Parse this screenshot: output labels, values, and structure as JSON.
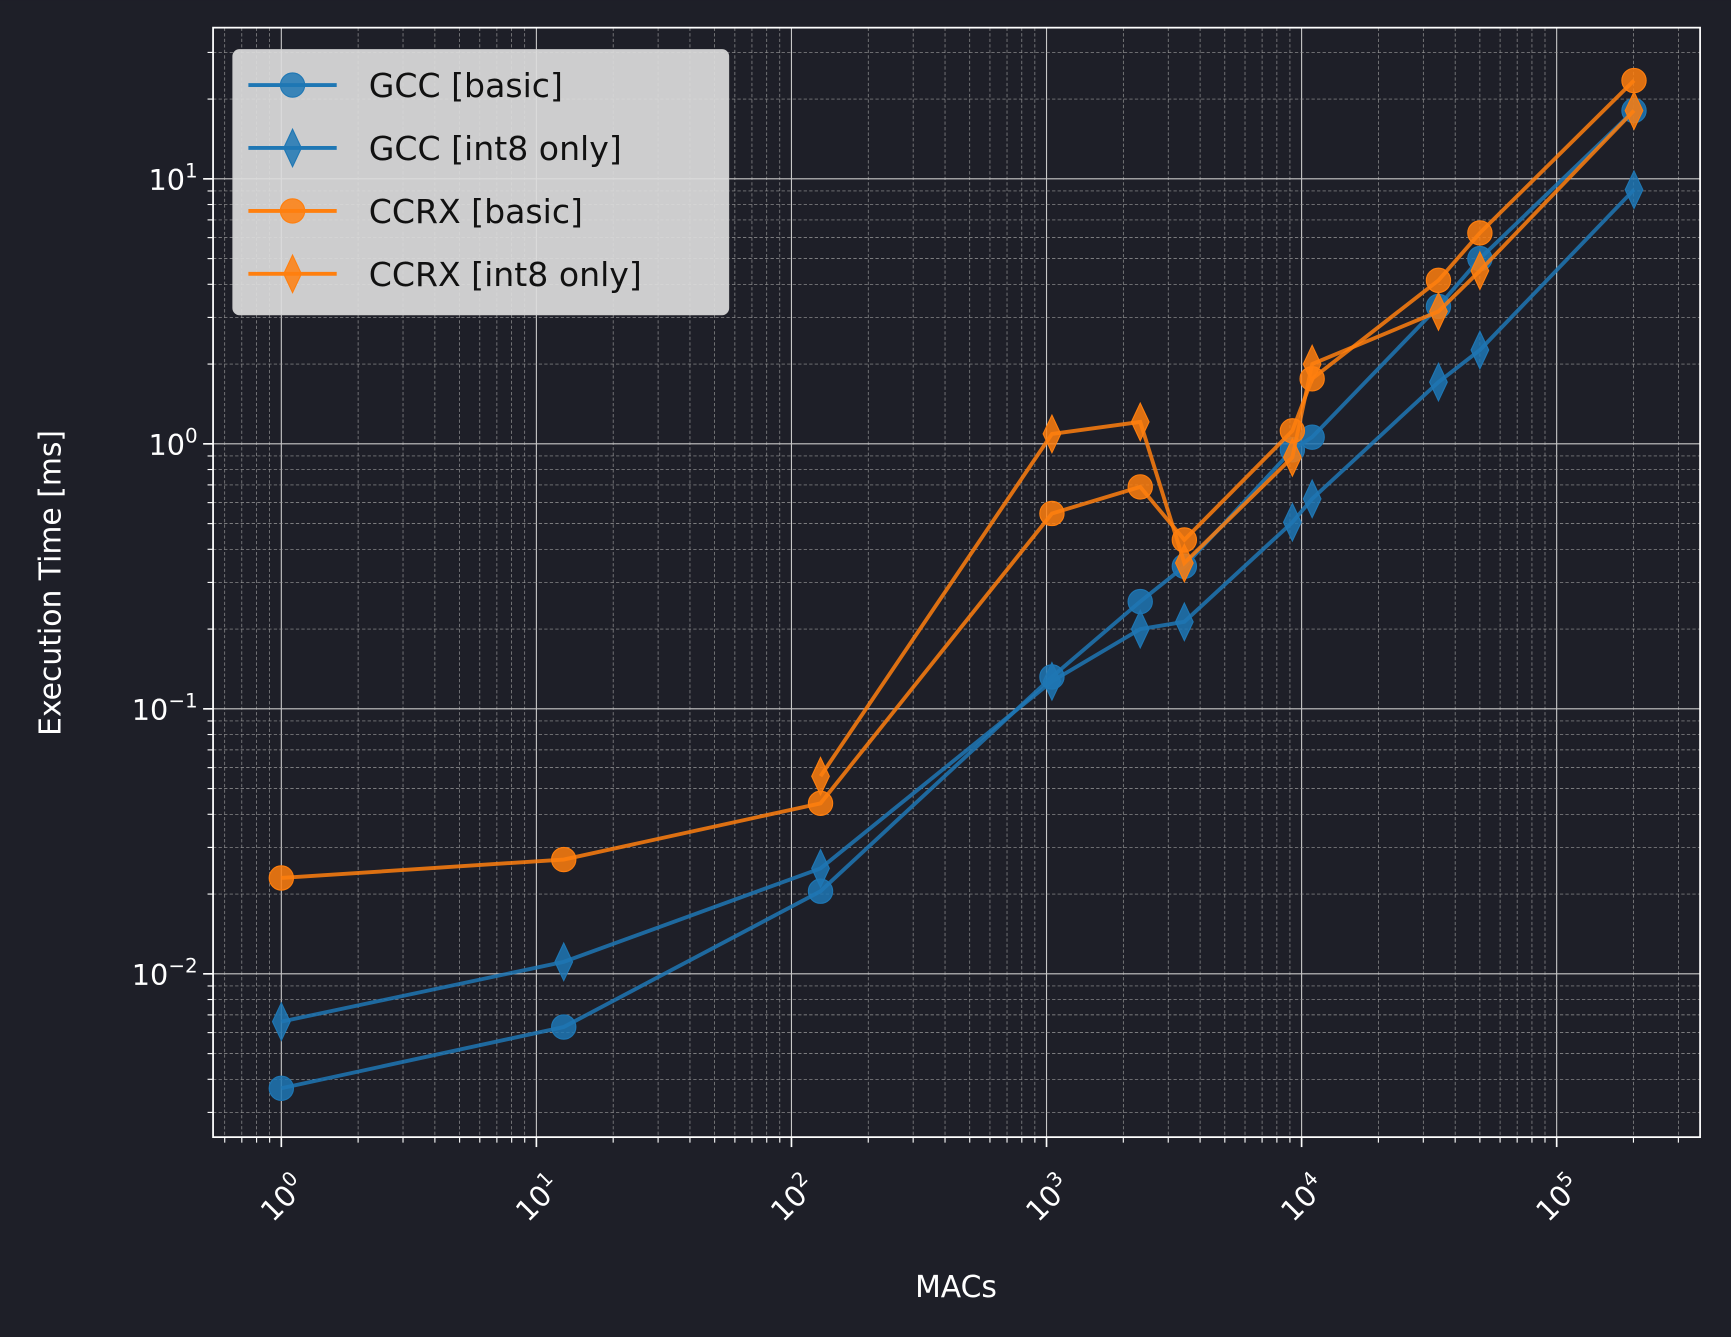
{
  "chart_data": {
    "type": "line",
    "title": "",
    "xlabel": "MACs",
    "ylabel": "Execution Time [ms]",
    "xscale": "log",
    "yscale": "log",
    "xlim": [
      0.54,
      365000
    ],
    "ylim": [
      0.00242,
      37.2
    ],
    "grid": {
      "major": true,
      "minor": true
    },
    "legend_position": "top-left",
    "x_ticks": [
      {
        "base": "10",
        "exp": "0",
        "value": 1
      },
      {
        "base": "10",
        "exp": "1",
        "value": 10
      },
      {
        "base": "10",
        "exp": "2",
        "value": 100
      },
      {
        "base": "10",
        "exp": "3",
        "value": 1000
      },
      {
        "base": "10",
        "exp": "4",
        "value": 10000
      },
      {
        "base": "10",
        "exp": "5",
        "value": 100000
      }
    ],
    "y_ticks": [
      {
        "base": "10",
        "exp": "−2",
        "value": 0.01
      },
      {
        "base": "10",
        "exp": "−1",
        "value": 0.1
      },
      {
        "base": "10",
        "exp": "0",
        "value": 1
      },
      {
        "base": "10",
        "exp": "1",
        "value": 10
      }
    ],
    "series": [
      {
        "name": "GCC [basic]",
        "color": "#1f77b4",
        "marker": "circle",
        "x": [
          1,
          12.8,
          130,
          1050,
          2330,
          3470,
          9200,
          11000,
          34400,
          50000,
          201000
        ],
        "y": [
          0.0037,
          0.0063,
          0.0205,
          0.132,
          0.254,
          0.345,
          0.95,
          1.06,
          3.3,
          5.0,
          18.1
        ]
      },
      {
        "name": "GCC [int8 only]",
        "color": "#1f77b4",
        "marker": "diamond",
        "x": [
          1,
          12.8,
          130,
          1050,
          2330,
          3470,
          9200,
          11000,
          34400,
          50000,
          201000
        ],
        "y": [
          0.0066,
          0.0111,
          0.025,
          0.127,
          0.2,
          0.213,
          0.506,
          0.62,
          1.71,
          2.26,
          9.1
        ]
      },
      {
        "name": "CCRX [basic]",
        "color": "#ff7f0e",
        "marker": "circle",
        "x": [
          1,
          12.8,
          130,
          1050,
          2330,
          3470,
          9200,
          11000,
          34400,
          50000,
          201000
        ],
        "y": [
          0.023,
          0.027,
          0.044,
          0.546,
          0.688,
          0.434,
          1.12,
          1.76,
          4.14,
          6.25,
          23.5
        ]
      },
      {
        "name": "CCRX [int8 only]",
        "color": "#ff7f0e",
        "marker": "diamond",
        "x": [
          130,
          1050,
          2330,
          3470,
          9200,
          11000,
          34400,
          50000,
          201000
        ],
        "y": [
          0.0557,
          1.09,
          1.21,
          0.355,
          0.89,
          2.0,
          3.16,
          4.5,
          18.1
        ]
      }
    ]
  }
}
